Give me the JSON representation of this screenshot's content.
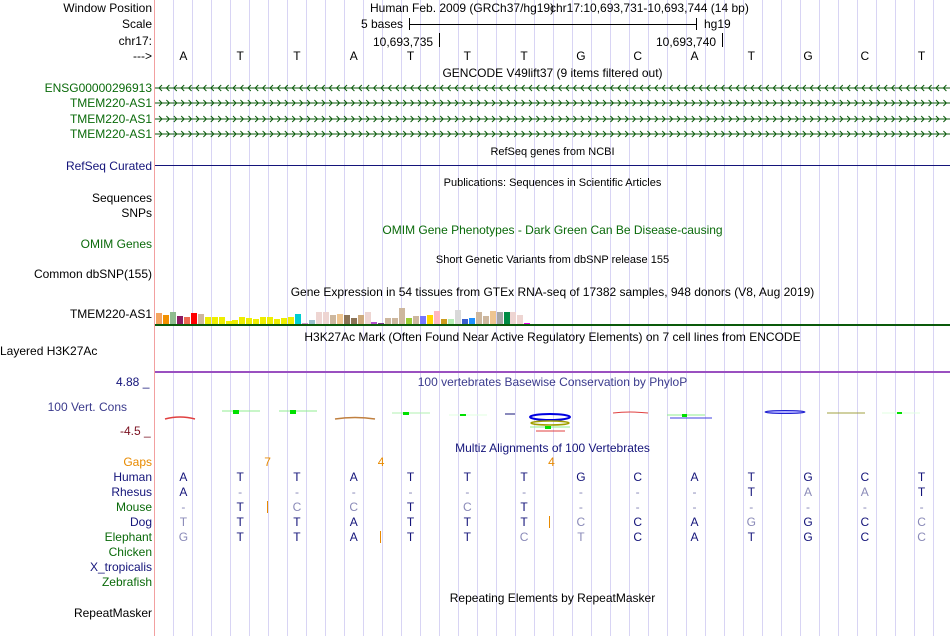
{
  "header": {
    "window_position_label": "Window Position",
    "assembly": "Human Feb. 2009 (GRCh37/hg19)",
    "position": "chr17:10,693,731-10,693,744 (14 bp)",
    "scale_label": "Scale",
    "scale_text": "5 bases",
    "scale_db": "hg19",
    "chrom_label": "chr17:",
    "coord_1": "10,693,735",
    "coord_2": "10,693,740",
    "strand_label": "--->"
  },
  "bases": [
    "A",
    "T",
    "T",
    "A",
    "T",
    "T",
    "T",
    "G",
    "C",
    "A",
    "T",
    "G",
    "C",
    "T"
  ],
  "tracks": {
    "gencode_title": "GENCODE V49lift37 (9 items filtered out)",
    "gencode_items": [
      {
        "name": "ENSG00000296913",
        "strand": "-"
      },
      {
        "name": "TMEM220-AS1",
        "strand": "+"
      },
      {
        "name": "TMEM220-AS1",
        "strand": "+"
      },
      {
        "name": "TMEM220-AS1",
        "strand": "+"
      }
    ],
    "refseq_title": "RefSeq genes from NCBI",
    "refseq_label": "RefSeq Curated",
    "pubs_title": "Publications: Sequences in Scientific Articles",
    "sequences_label": "Sequences",
    "snps_label": "SNPs",
    "omim_title": "OMIM Gene Phenotypes - Dark Green Can Be Disease-causing",
    "omim_label": "OMIM Genes",
    "dbsnp_title": "Short Genetic Variants from dbSNP release 155",
    "dbsnp_label": "Common dbSNP(155)",
    "gtex_title": "Gene Expression in 54 tissues from GTEx RNA-seq of 17382 samples, 948 donors (V8, Aug 2019)",
    "gtex_label": "TMEM220-AS1",
    "h3k27ac_title": "H3K27Ac Mark (Often Found Near Active Regulatory Elements) on 7 cell lines from ENCODE",
    "h3k27ac_label": "Layered H3K27Ac",
    "phylop_title": "100 vertebrates Basewise Conservation by PhyloP",
    "phylop_label": "100 Vert. Cons",
    "phylop_max": "4.88 _",
    "phylop_min": "-4.5 _",
    "multiz_title": "Multiz Alignments of 100 Vertebrates",
    "gaps_label": "Gaps",
    "repeat_title": "Repeating Elements by RepeatMasker",
    "repeat_label": "RepeatMasker"
  },
  "gtex_bars": [
    {
      "v": 12,
      "c": "#f4a460"
    },
    {
      "v": 10,
      "c": "#f29000"
    },
    {
      "v": 14,
      "c": "#8fbc8f"
    },
    {
      "v": 9,
      "c": "#8b1c62"
    },
    {
      "v": 8,
      "c": "#ee6a50"
    },
    {
      "v": 12,
      "c": "#ff0000"
    },
    {
      "v": 11,
      "c": "#cdb79e"
    },
    {
      "v": 8,
      "c": "#eeee00"
    },
    {
      "v": 8,
      "c": "#eeee00"
    },
    {
      "v": 8,
      "c": "#eeee00"
    },
    {
      "v": 3,
      "c": "#eeee00"
    },
    {
      "v": 4,
      "c": "#eeee00"
    },
    {
      "v": 8,
      "c": "#eeee00"
    },
    {
      "v": 7,
      "c": "#eeee00"
    },
    {
      "v": 6,
      "c": "#eeee00"
    },
    {
      "v": 8,
      "c": "#eeee00"
    },
    {
      "v": 8,
      "c": "#eeee00"
    },
    {
      "v": 6,
      "c": "#eeee00"
    },
    {
      "v": 7,
      "c": "#eeee00"
    },
    {
      "v": 8,
      "c": "#eeee00"
    },
    {
      "v": 11,
      "c": "#00ced1"
    },
    {
      "v": 1,
      "c": "#cd96cd"
    },
    {
      "v": 5,
      "c": "#9ac0cd"
    },
    {
      "v": 14,
      "c": "#eed5d2"
    },
    {
      "v": 14,
      "c": "#eed5d2"
    },
    {
      "v": 10,
      "c": "#cdb79e"
    },
    {
      "v": 11,
      "c": "#eec591"
    },
    {
      "v": 10,
      "c": "#8b7355"
    },
    {
      "v": 7,
      "c": "#8b7355"
    },
    {
      "v": 10,
      "c": "#cdaa7d"
    },
    {
      "v": 13,
      "c": "#eed5d2"
    },
    {
      "v": 2,
      "c": "#b452cd"
    },
    {
      "v": 1,
      "c": "#7a378b"
    },
    {
      "v": 7,
      "c": "#cdb79e"
    },
    {
      "v": 7,
      "c": "#cdb79e"
    },
    {
      "v": 18,
      "c": "#cdb79e"
    },
    {
      "v": 7,
      "c": "#9acd32"
    },
    {
      "v": 9,
      "c": "#cdb79e"
    },
    {
      "v": 9,
      "c": "#7777ff"
    },
    {
      "v": 10,
      "c": "#ffd700"
    },
    {
      "v": 15,
      "c": "#ffb6c1"
    },
    {
      "v": 6,
      "c": "#cd9b1d"
    },
    {
      "v": 6,
      "c": "#b4eeb4"
    },
    {
      "v": 16,
      "c": "#d9d9d9"
    },
    {
      "v": 6,
      "c": "#3a5fcd"
    },
    {
      "v": 7,
      "c": "#1e90ff"
    },
    {
      "v": 13,
      "c": "#cdb79e"
    },
    {
      "v": 9,
      "c": "#cdb79e"
    },
    {
      "v": 15,
      "c": "#eec591"
    },
    {
      "v": 14,
      "c": "#a6a6a6"
    },
    {
      "v": 14,
      "c": "#008b45"
    },
    {
      "v": 13,
      "c": "#eed5d2"
    },
    {
      "v": 10,
      "c": "#eed5d2"
    },
    {
      "v": 1,
      "c": "#ee00ee"
    }
  ],
  "gaps": [
    {
      "after": 1,
      "count": "7"
    },
    {
      "after": 3,
      "count": "4"
    },
    {
      "after": 6,
      "count": "4"
    }
  ],
  "species": [
    {
      "name": "Human",
      "color": "#14147a",
      "seq": "ATTATTTGCATGCT",
      "ins": []
    },
    {
      "name": "Rhesus",
      "color": "#14147a",
      "seq": "A---------TAAT",
      "ins": []
    },
    {
      "name": "Mouse",
      "color": "#0a6a0a",
      "seq": "-TCCTCT-------",
      "ins": [
        0
      ]
    },
    {
      "name": "Dog",
      "color": "#14147a",
      "seq": "TTTATTTCCAGGCC",
      "ins": [
        2
      ]
    },
    {
      "name": "Elephant",
      "color": "#0a6a0a",
      "seq": "GTTATTCTCATGCC",
      "ins": [
        1
      ]
    },
    {
      "name": "Chicken",
      "color": "#0a6a0a",
      "seq": "",
      "ins": []
    },
    {
      "name": "X_tropicalis",
      "color": "#14147a",
      "seq": "",
      "ins": []
    },
    {
      "name": "Zebrafish",
      "color": "#0a6a0a",
      "seq": "",
      "ins": []
    }
  ]
}
